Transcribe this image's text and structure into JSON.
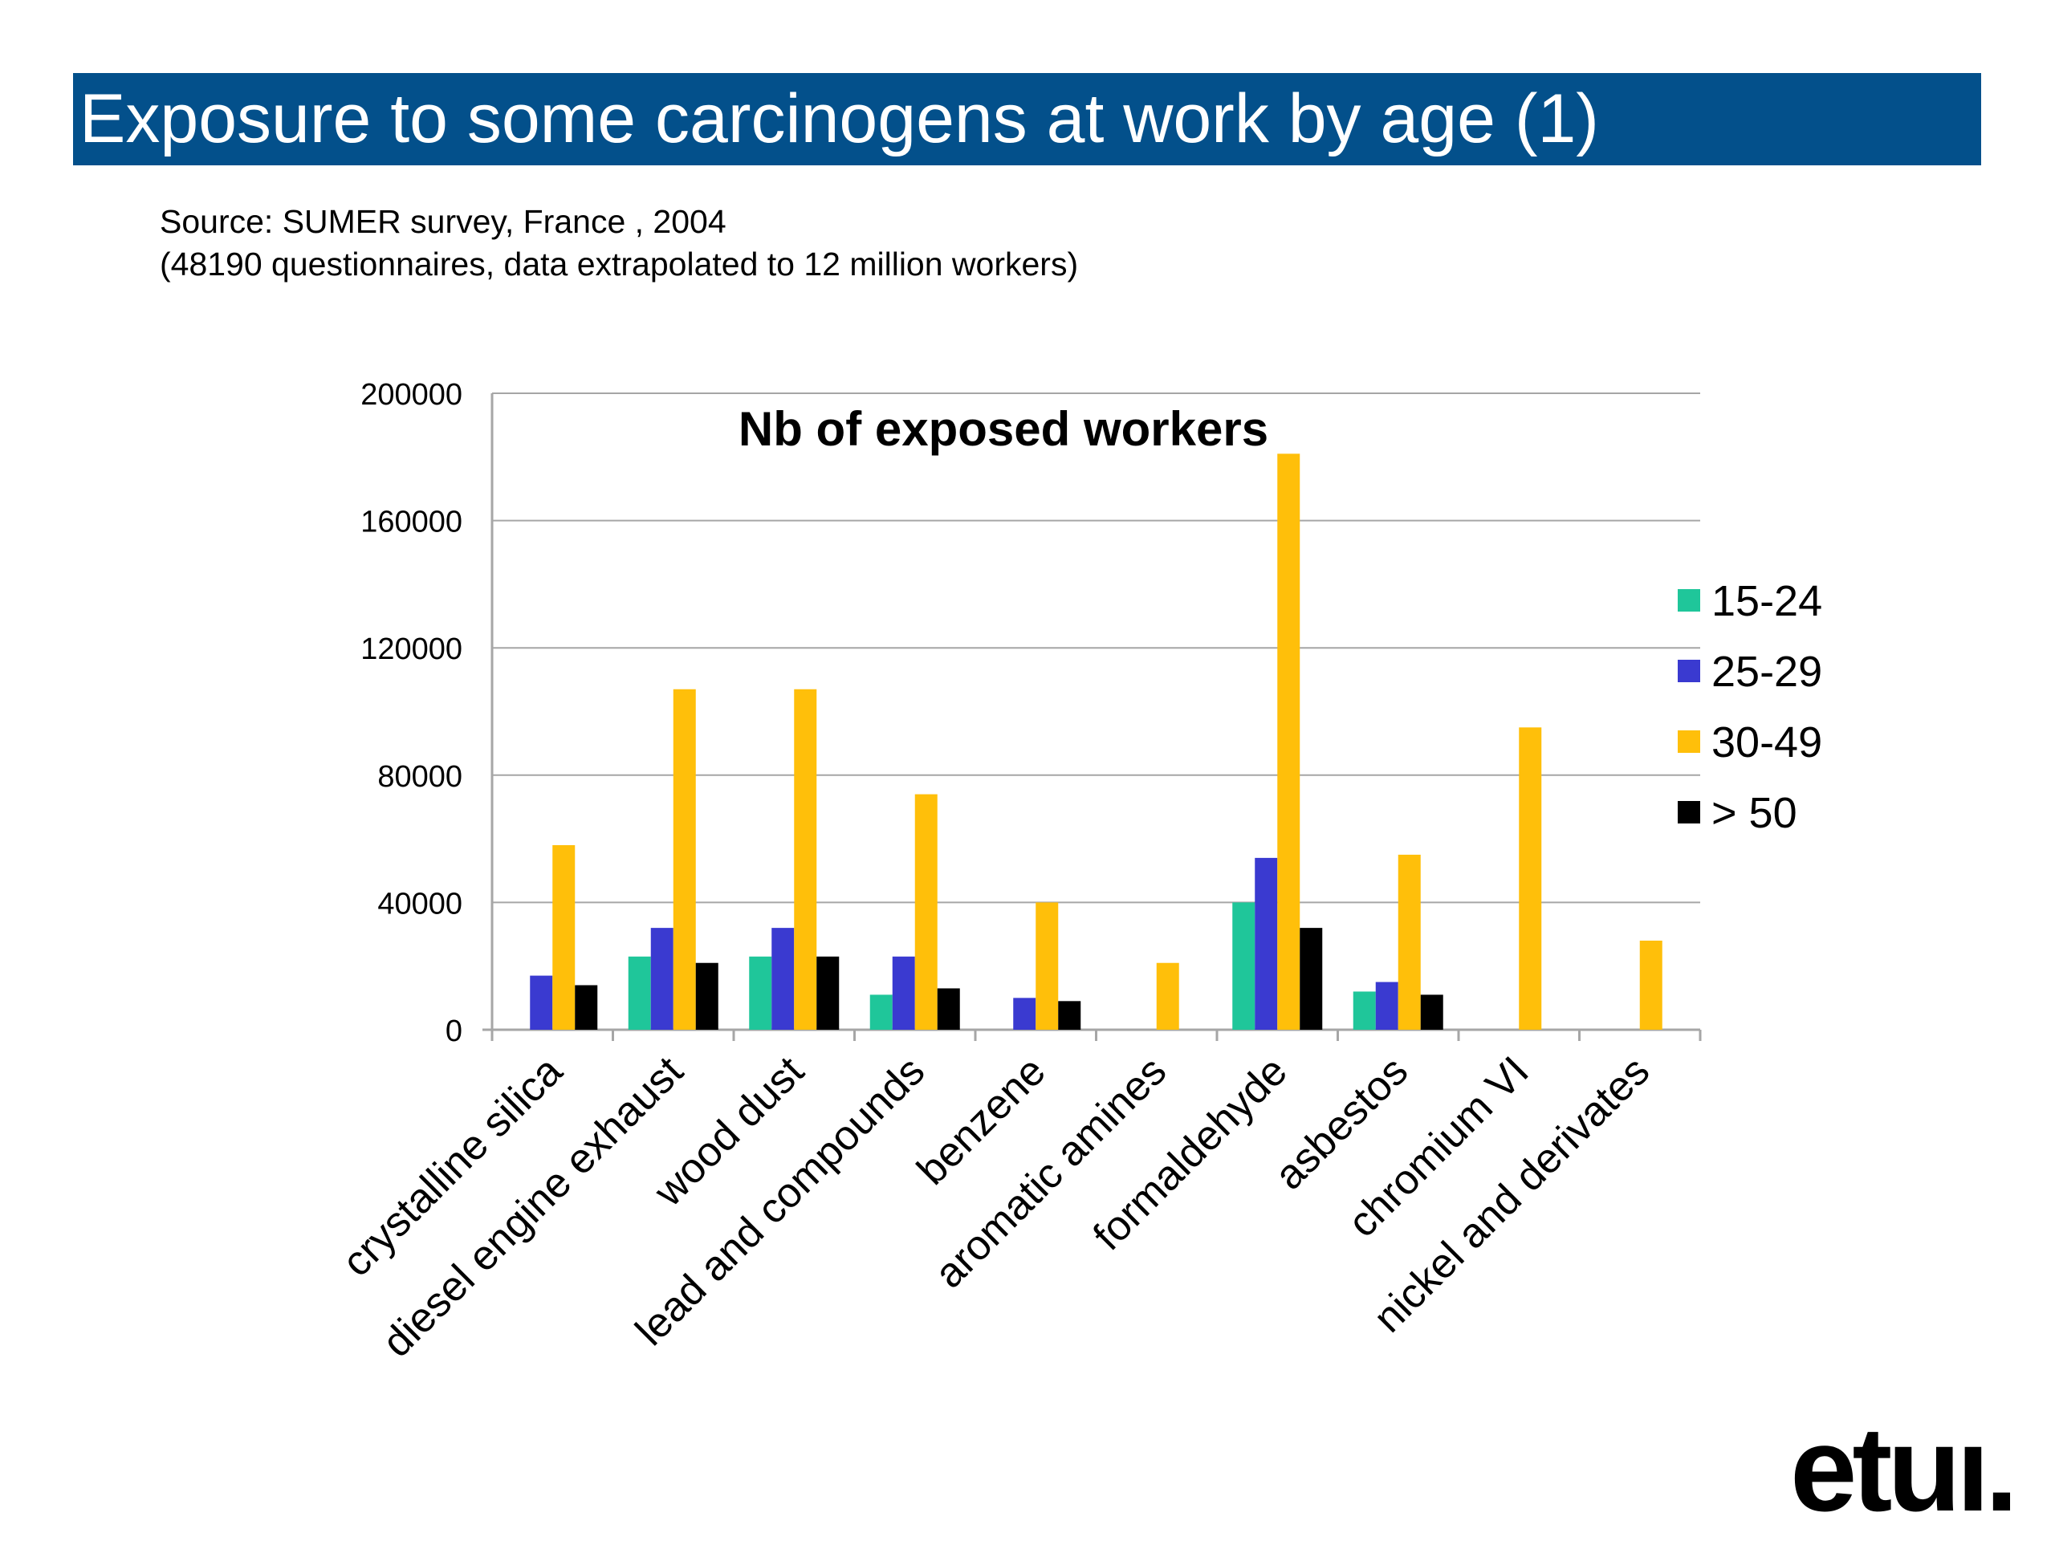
{
  "header": {
    "title": "Exposure to some carcinogens at work by age (1)",
    "source_line1": "Source: SUMER survey, France , 2004",
    "source_line2": "(48190 questionnaires, data extrapolated to 12 million workers)"
  },
  "logo": {
    "text": "etuı."
  },
  "colors": {
    "title_bar": "#03508b",
    "s1": "#1fc69a",
    "s2": "#3a3ad0",
    "s3": "#ffbf0a",
    "s4": "#000000",
    "grid": "#a6a6a6"
  },
  "chart_data": {
    "type": "bar",
    "title": "Nb of exposed workers",
    "xlabel": "",
    "ylabel": "",
    "ylim": [
      0,
      200000
    ],
    "yticks": [
      0,
      40000,
      80000,
      120000,
      160000,
      200000
    ],
    "grid": true,
    "legend_position": "right",
    "categories": [
      "crystalline silica",
      "diesel engine exhaust",
      "wood dust",
      "lead and compounds",
      "benzene",
      "aromatic amines",
      "formaldehyde",
      "asbestos",
      "chromium VI",
      "nickel and derivates"
    ],
    "series": [
      {
        "name": "15-24",
        "color": "#1fc69a",
        "values": [
          0,
          23000,
          23000,
          11000,
          0,
          0,
          40000,
          12000,
          0,
          0
        ]
      },
      {
        "name": "25-29",
        "color": "#3a3ad0",
        "values": [
          17000,
          32000,
          32000,
          23000,
          10000,
          0,
          54000,
          15000,
          0,
          0
        ]
      },
      {
        "name": "30-49",
        "color": "#ffbf0a",
        "values": [
          58000,
          107000,
          107000,
          74000,
          40000,
          21000,
          181000,
          55000,
          95000,
          28000
        ]
      },
      {
        "name": "> 50",
        "color": "#000000",
        "values": [
          14000,
          21000,
          23000,
          13000,
          9000,
          0,
          32000,
          11000,
          0,
          0
        ]
      }
    ]
  }
}
